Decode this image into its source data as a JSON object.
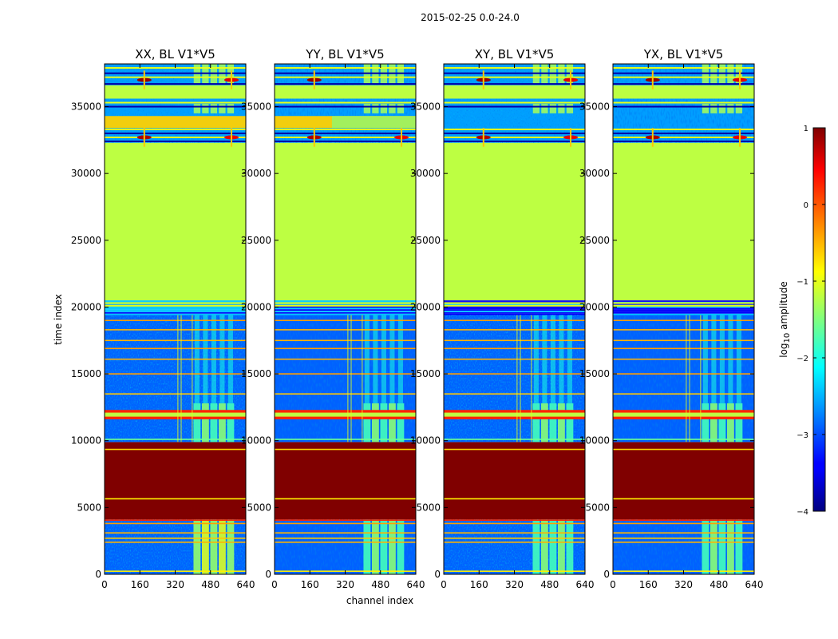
{
  "chart_data": {
    "type": "heatmap",
    "suptitle": "2015-02-25 0.0-24.0",
    "xlabel": "channel index",
    "ylabel": "time index",
    "xlim": [
      0,
      640
    ],
    "ylim": [
      0,
      38200
    ],
    "xticks": [
      0,
      160,
      320,
      480,
      640
    ],
    "yticks": [
      0,
      5000,
      10000,
      15000,
      20000,
      25000,
      30000,
      35000
    ],
    "panels": [
      {
        "title": "XX, BL V1*V5",
        "cross_pol": false,
        "upper_block_variant": "band-full"
      },
      {
        "title": "YY, BL V1*V5",
        "cross_pol": false,
        "upper_block_variant": "band-partial"
      },
      {
        "title": "XY, BL V1*V5",
        "cross_pol": true,
        "upper_block_variant": "noisy"
      },
      {
        "title": "YX, BL V1*V5",
        "cross_pol": true,
        "upper_block_variant": "noisy"
      }
    ],
    "colorbar": {
      "label": "log",
      "label_sub": "10",
      "label_rest": " amplitude",
      "range": [
        -4,
        1
      ],
      "ticks": [
        -4,
        -3,
        -2,
        -1,
        0,
        1
      ],
      "tick_labels": [
        "−4",
        "−3",
        "−2",
        "−1",
        "0",
        "1"
      ],
      "colormap": "jet"
    },
    "time_segments": [
      {
        "name": "early-noise",
        "start": 0,
        "end": 4100,
        "level": -2.9
      },
      {
        "name": "saturated-block",
        "start": 4100,
        "end": 9900,
        "level": 1.0
      },
      {
        "name": "mid-noise",
        "start": 9900,
        "end": 19400,
        "level": -2.9
      },
      {
        "name": "flat-block",
        "start": 20500,
        "end": 32300,
        "level": -1.2
      },
      {
        "name": "late-noise",
        "start": 32300,
        "end": 38200,
        "level": -2.6
      }
    ],
    "bright_channel_range": [
      400,
      590
    ],
    "bright_channel_level": -1.7
  }
}
